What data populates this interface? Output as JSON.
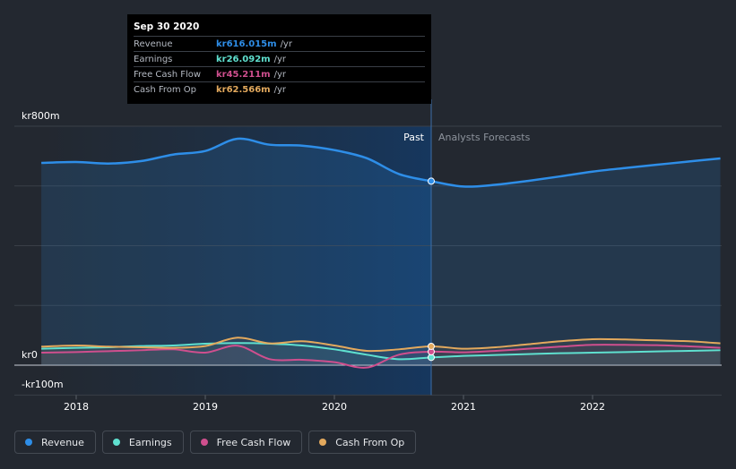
{
  "tooltip": {
    "date": "Sep 30 2020",
    "rows": [
      {
        "label": "Revenue",
        "value": "kr616.015m",
        "unit": "/yr"
      },
      {
        "label": "Earnings",
        "value": "kr26.092m",
        "unit": "/yr"
      },
      {
        "label": "Free Cash Flow",
        "value": "kr45.211m",
        "unit": "/yr"
      },
      {
        "label": "Cash From Op",
        "value": "kr62.566m",
        "unit": "/yr"
      }
    ]
  },
  "legend": [
    {
      "label": "Revenue",
      "color": "#2e8ee8"
    },
    {
      "label": "Earnings",
      "color": "#5fe0cf"
    },
    {
      "label": "Free Cash Flow",
      "color": "#cf4f8e"
    },
    {
      "label": "Cash From Op",
      "color": "#e3a95d"
    }
  ],
  "chart_data": {
    "type": "line",
    "title": "",
    "past_label": "Past",
    "forecast_label": "Analysts Forecasts",
    "divider_x": 2020.75,
    "y_tick_labels": [
      {
        "value": 800,
        "label": "kr800m"
      },
      {
        "value": 0,
        "label": "kr0"
      },
      {
        "value": -100,
        "label": "-kr100m"
      }
    ],
    "x_ticks": [
      2018,
      2019,
      2020,
      2021,
      2022
    ],
    "x_tick_labels": [
      "2018",
      "2019",
      "2020",
      "2021",
      "2022"
    ],
    "xlim": [
      2017.5,
      2022.99
    ],
    "ylim": [
      -100,
      800
    ],
    "gridlines_y": [
      800,
      600,
      400,
      200,
      0,
      -100
    ],
    "series": [
      {
        "name": "Revenue",
        "color": "#2e8ee8",
        "fill": true,
        "x": [
          2017.73,
          2018.0,
          2018.25,
          2018.5,
          2018.75,
          2019.0,
          2019.25,
          2019.5,
          2019.75,
          2020.0,
          2020.25,
          2020.5,
          2020.75,
          2021.0,
          2021.25,
          2021.5,
          2021.75,
          2022.0,
          2022.25,
          2022.5,
          2022.75,
          2022.99
        ],
        "values": [
          677,
          680,
          675,
          683,
          705,
          717,
          758,
          738,
          735,
          720,
          693,
          640,
          616,
          598,
          604,
          617,
          632,
          648,
          660,
          671,
          682,
          692
        ]
      },
      {
        "name": "Earnings",
        "color": "#5fe0cf",
        "fill": false,
        "x": [
          2017.73,
          2018.0,
          2018.25,
          2018.5,
          2018.75,
          2019.0,
          2019.25,
          2019.5,
          2019.75,
          2020.0,
          2020.25,
          2020.5,
          2020.75,
          2021.0,
          2021.25,
          2021.5,
          2021.75,
          2022.0,
          2022.25,
          2022.5,
          2022.75,
          2022.99
        ],
        "values": [
          55,
          58,
          60,
          64,
          66,
          72,
          74,
          72,
          66,
          53,
          35,
          20,
          26,
          31,
          34,
          37,
          40,
          42,
          44,
          46,
          48,
          50
        ]
      },
      {
        "name": "Free Cash Flow",
        "color": "#cf4f8e",
        "fill": false,
        "x": [
          2017.73,
          2018.0,
          2018.25,
          2018.5,
          2018.75,
          2019.0,
          2019.25,
          2019.5,
          2019.75,
          2020.0,
          2020.25,
          2020.5,
          2020.75,
          2021.0,
          2021.25,
          2021.5,
          2021.75,
          2022.0,
          2022.25,
          2022.5,
          2022.75,
          2022.99
        ],
        "values": [
          42,
          44,
          47,
          50,
          53,
          42,
          65,
          20,
          18,
          10,
          -8,
          35,
          45,
          43,
          48,
          55,
          62,
          68,
          68,
          67,
          63,
          58
        ]
      },
      {
        "name": "Cash From Op",
        "color": "#e3a95d",
        "fill": false,
        "x": [
          2017.73,
          2018.0,
          2018.25,
          2018.5,
          2018.75,
          2019.0,
          2019.25,
          2019.5,
          2019.75,
          2020.0,
          2020.25,
          2020.5,
          2020.75,
          2021.0,
          2021.25,
          2021.5,
          2021.75,
          2022.0,
          2022.25,
          2022.5,
          2022.75,
          2022.99
        ],
        "values": [
          62,
          66,
          62,
          60,
          58,
          64,
          92,
          73,
          80,
          66,
          48,
          53,
          63,
          55,
          60,
          70,
          80,
          87,
          86,
          83,
          80,
          73
        ]
      }
    ]
  }
}
